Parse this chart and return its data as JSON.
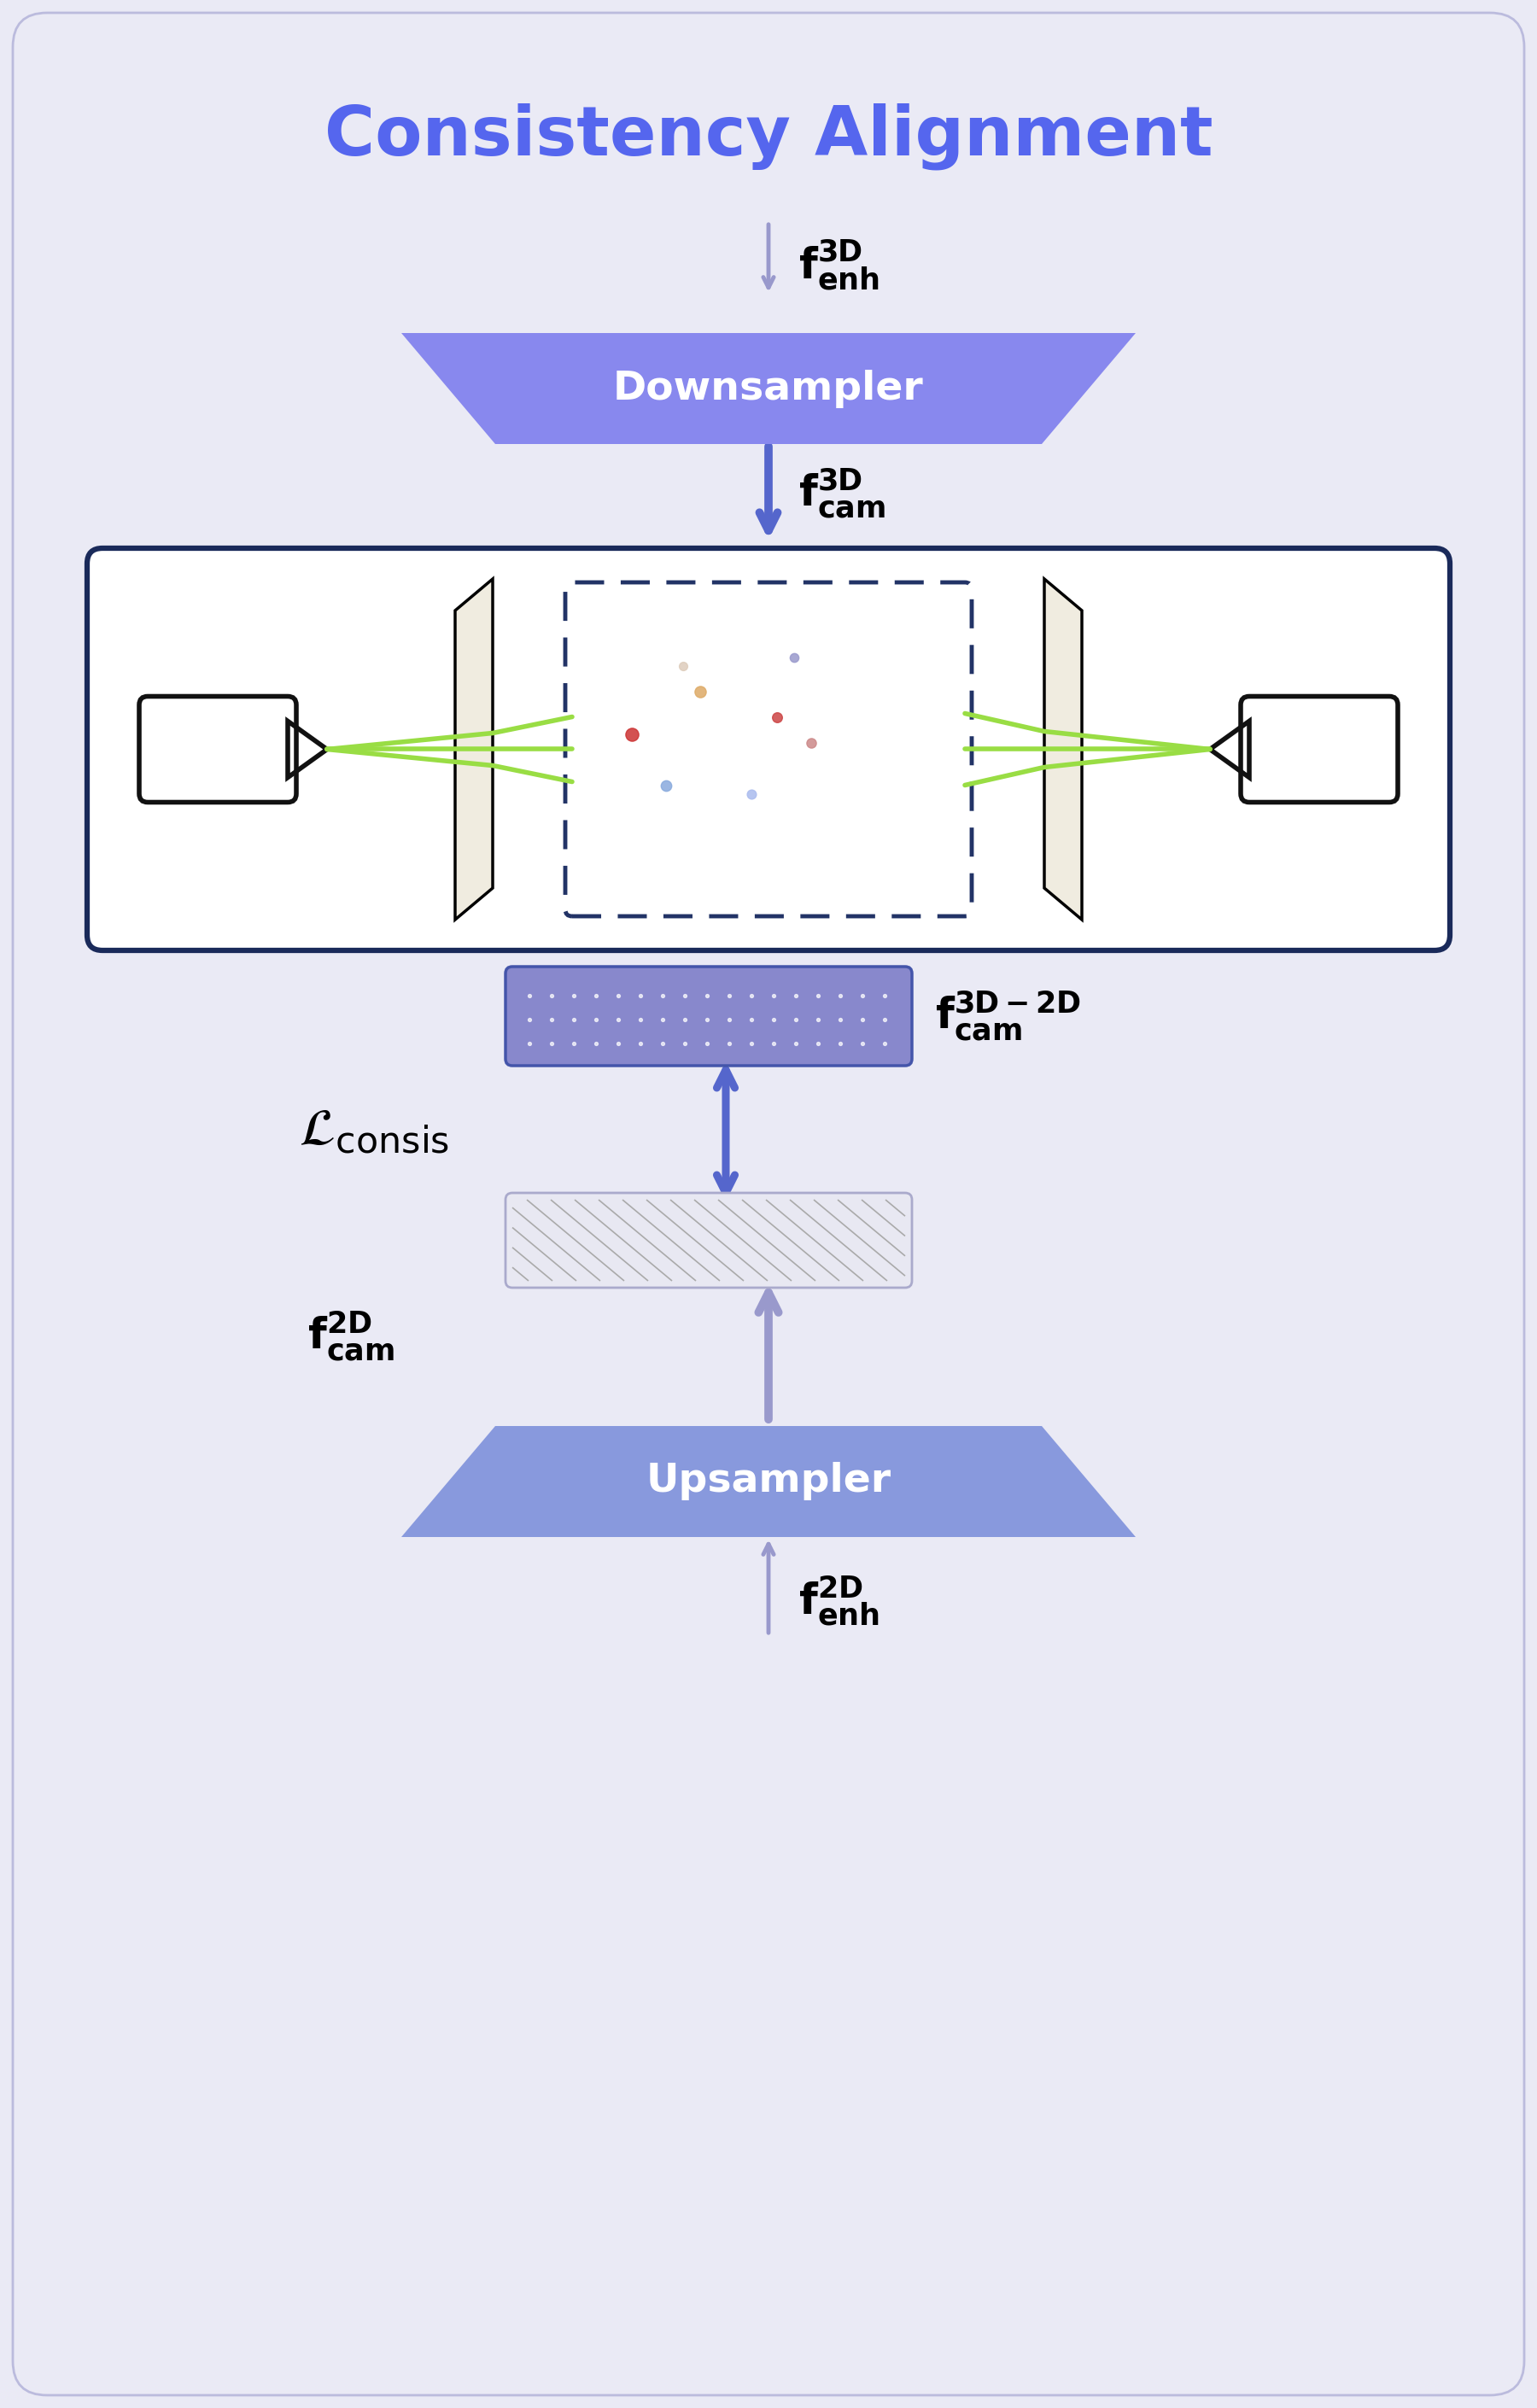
{
  "bg_color": "#eaeaf5",
  "title": "Consistency Alignment",
  "title_color": "#5566ee",
  "title_fontsize": 58,
  "downsampler_color": "#8888ee",
  "downsampler_text": "Downsampler",
  "upsampler_color": "#8899dd",
  "upsampler_text": "Upsampler",
  "box_border_color": "#1a2a5a",
  "arrow_light_color": "#9999cc",
  "arrow_blue_color": "#5566cc",
  "green_line_color": "#99dd44",
  "dashed_box_color": "#223366",
  "plane_fill": "#f0ece0",
  "feat3d2d_color": "#8888cc",
  "feat2d_fill": "#e8e8f2",
  "feat2d_line": "#aaaacc",
  "cam_color": "#111111",
  "text_color": "#000000",
  "lconsis_fontsize": 44,
  "label_fontsize": 36,
  "btn_fontsize": 34
}
